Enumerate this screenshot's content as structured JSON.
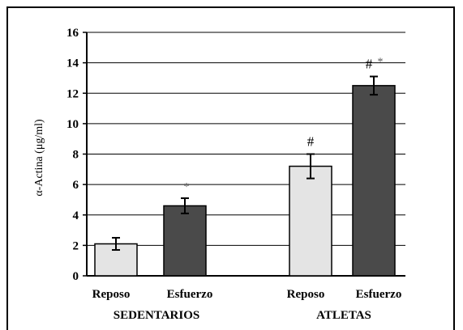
{
  "chart_data": {
    "type": "bar",
    "ylabel": "α-Actina  (μg/ml)",
    "ylim": [
      0,
      16
    ],
    "yticks": [
      0,
      2,
      4,
      6,
      8,
      10,
      12,
      14,
      16
    ],
    "grid": true,
    "groups": [
      {
        "name": "SEDENTARIOS",
        "bars": [
          {
            "category": "Reposo",
            "value": 2.1,
            "error": 0.4,
            "color": "#e4e4e4",
            "annotation": ""
          },
          {
            "category": "Esfuerzo",
            "value": 4.6,
            "error": 0.5,
            "color": "#4a4a4a",
            "annotation": "*"
          }
        ]
      },
      {
        "name": "ATLETAS",
        "bars": [
          {
            "category": "Reposo",
            "value": 7.2,
            "error": 0.8,
            "color": "#e4e4e4",
            "annotation": "#"
          },
          {
            "category": "Esfuerzo",
            "value": 12.5,
            "error": 0.6,
            "color": "#4a4a4a",
            "annotation": "# *"
          }
        ]
      }
    ]
  }
}
